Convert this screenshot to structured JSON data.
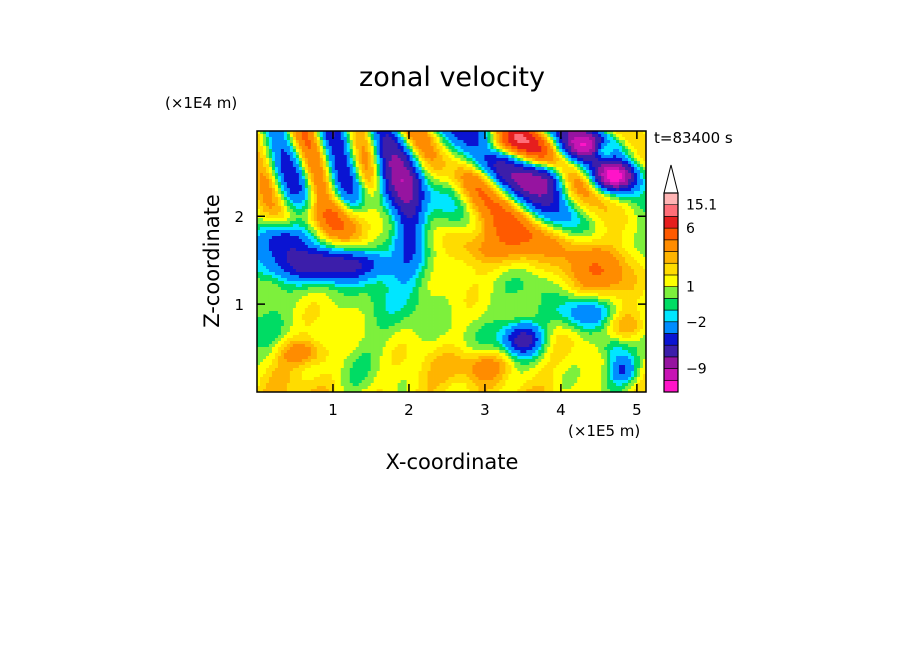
{
  "chart_data": {
    "type": "heatmap",
    "title": "zonal velocity",
    "xlabel": "X-coordinate",
    "ylabel": "Z-coordinate",
    "x_unit": "(×1E5 m)",
    "y_unit": "(×1E4 m)",
    "time_label": "t=83400 s",
    "x_ticks": [
      1,
      2,
      3,
      4,
      5
    ],
    "y_ticks": [
      1,
      2
    ],
    "xlim": [
      0,
      5.12
    ],
    "ylim": [
      0,
      2.97
    ],
    "colorbar": {
      "levels": [
        {
          "color": "#ff14c8"
        },
        {
          "color": "#c814b4"
        },
        {
          "color": "#9614a0"
        },
        {
          "color": "#3c1eaa"
        },
        {
          "color": "#0a14d2"
        },
        {
          "color": "#008cff"
        },
        {
          "color": "#00e6ff"
        },
        {
          "color": "#00dc64"
        },
        {
          "color": "#7df03c"
        },
        {
          "color": "#ffff00"
        },
        {
          "color": "#ffdc00"
        },
        {
          "color": "#ffb400"
        },
        {
          "color": "#ff8c00"
        },
        {
          "color": "#ff5a00"
        },
        {
          "color": "#e61e1e"
        },
        {
          "color": "#ff6e78"
        },
        {
          "color": "#ffb4b4"
        }
      ],
      "labels": [
        {
          "text": "15.1",
          "level": 16
        },
        {
          "text": "6",
          "level": 14
        },
        {
          "text": "1",
          "level": 9
        },
        {
          "text": "−2",
          "level": 6
        },
        {
          "text": "−9",
          "level": 2
        }
      ],
      "extend": "max"
    }
  }
}
